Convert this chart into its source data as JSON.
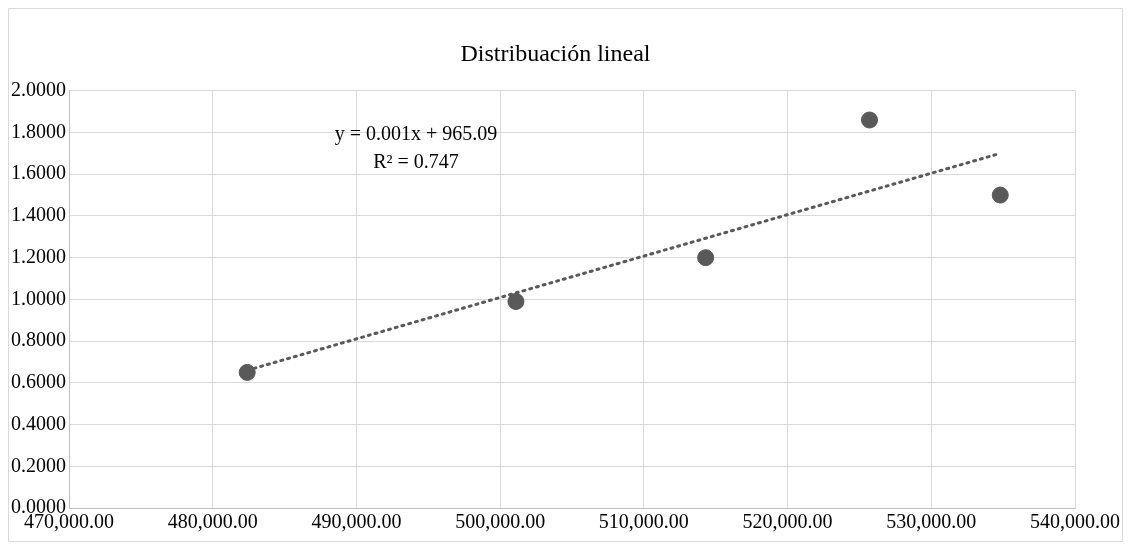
{
  "chart_data": {
    "type": "scatter",
    "title": "Distribuación lineal",
    "xlim": [
      470000,
      540000
    ],
    "xticks": [
      {
        "value": 470000,
        "label": "470,000.00"
      },
      {
        "value": 480000,
        "label": "480,000.00"
      },
      {
        "value": 490000,
        "label": "490,000.00"
      },
      {
        "value": 500000,
        "label": "500,000.00"
      },
      {
        "value": 510000,
        "label": "510,000.00"
      },
      {
        "value": 520000,
        "label": "520,000.00"
      },
      {
        "value": 530000,
        "label": "530,000.00"
      },
      {
        "value": 540000,
        "label": "540,000.00"
      }
    ],
    "ylim": [
      0,
      2
    ],
    "yticks": [
      {
        "value": 0,
        "label": "0.0000"
      },
      {
        "value": 0.2,
        "label": "0.2000"
      },
      {
        "value": 0.4,
        "label": "0.4000"
      },
      {
        "value": 0.6,
        "label": "0.6000"
      },
      {
        "value": 0.8,
        "label": "0.8000"
      },
      {
        "value": 1,
        "label": "1.0000"
      },
      {
        "value": 1.2,
        "label": "1.2000"
      },
      {
        "value": 1.4,
        "label": "1.4000"
      },
      {
        "value": 1.6,
        "label": "1.6000"
      },
      {
        "value": 1.8,
        "label": "1.8000"
      },
      {
        "value": 2,
        "label": "2.0000"
      }
    ],
    "series": [
      {
        "color": "#595959",
        "x": [
          482400,
          501100,
          514300,
          525700,
          534800
        ],
        "values": [
          0.65,
          0.99,
          1.2,
          1.86,
          1.5
        ],
        "marker": "circle"
      },
      {
        "type": "line",
        "color": "#595959",
        "x": [
          482400,
          534800
        ],
        "values": [
          0.66,
          1.7
        ],
        "line_style": "dotted",
        "marker": "none"
      }
    ],
    "annotations": [
      "y = 0.001x + 965.09",
      "R² = 0.747"
    ],
    "grid": true,
    "legend": false
  }
}
